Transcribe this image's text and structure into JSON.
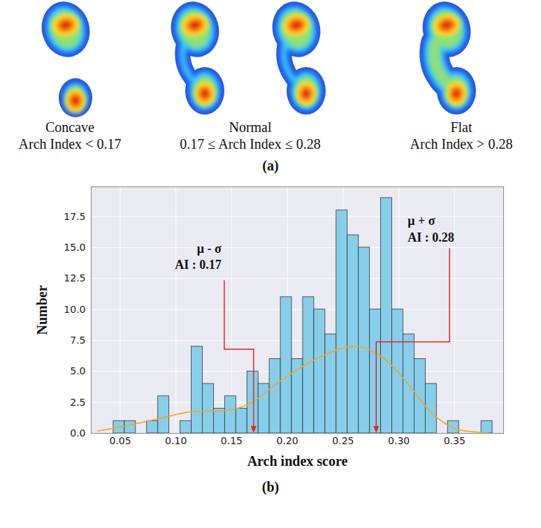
{
  "panel_a": {
    "label": "(a)",
    "types": [
      {
        "name": "Concave",
        "rule": "Arch Index < 0.17"
      },
      {
        "name": "Normal",
        "rule": "0.17 ≤ Arch Index ≤ 0.28"
      },
      {
        "name": "Flat",
        "rule": "Arch Index > 0.28"
      }
    ]
  },
  "panel_b": {
    "label": "(b)"
  },
  "chart_data": {
    "type": "histogram",
    "xlabel": "Arch index score",
    "ylabel": "Number",
    "bins": [
      0.044,
      0.054,
      0.064,
      0.074,
      0.084,
      0.094,
      0.104,
      0.114,
      0.124,
      0.134,
      0.144,
      0.154,
      0.164,
      0.174,
      0.184,
      0.194,
      0.204,
      0.214,
      0.224,
      0.234,
      0.244,
      0.254,
      0.264,
      0.274,
      0.284,
      0.294,
      0.304,
      0.314,
      0.324,
      0.334,
      0.344,
      0.354,
      0.364,
      0.374,
      0.384
    ],
    "counts": [
      1,
      1,
      0,
      1,
      3,
      0,
      1,
      7,
      4,
      2,
      3,
      2,
      5,
      4,
      6,
      11,
      6,
      11,
      10,
      8,
      18,
      16,
      15,
      10,
      19,
      10,
      8,
      6,
      4,
      0,
      1,
      0,
      0,
      1
    ],
    "color": "#87ceeb",
    "curve": {
      "type": "line",
      "color": "#f5a623",
      "x": [
        0.03,
        0.05,
        0.07,
        0.09,
        0.11,
        0.13,
        0.15,
        0.17,
        0.19,
        0.21,
        0.23,
        0.25,
        0.26,
        0.27,
        0.29,
        0.31,
        0.33,
        0.35,
        0.37,
        0.38
      ],
      "values": [
        0.2,
        0.5,
        0.9,
        1.3,
        1.7,
        1.8,
        1.9,
        2.6,
        4.0,
        5.2,
        6.2,
        6.9,
        7.0,
        6.9,
        5.8,
        3.8,
        1.6,
        0.4,
        0.1,
        0.05
      ]
    },
    "annotations": [
      {
        "lines": [
          "μ - σ",
          "AI : 0.17"
        ],
        "x": 0.17,
        "color": "#e8231a"
      },
      {
        "lines": [
          "μ + σ",
          "AI : 0.28"
        ],
        "x": 0.28,
        "color": "#e8231a"
      }
    ],
    "xlim": [
      0.024,
      0.394
    ],
    "xticks": [
      0.05,
      {
        "value": 0.1,
        "label": "0.10"
      },
      0.15,
      {
        "value": 0.2,
        "label": "0.20"
      },
      0.25,
      {
        "value": 0.3,
        "label": "0.30"
      },
      0.35
    ],
    "ylim": [
      0,
      19.9
    ],
    "yticks": [
      {
        "value": 0,
        "label": "0.0"
      },
      2.5,
      {
        "value": 5,
        "label": "5.0"
      },
      7.5,
      {
        "value": 10,
        "label": "10.0"
      },
      12.5,
      {
        "value": 15,
        "label": "15.0"
      },
      17.5
    ],
    "grid": true
  }
}
